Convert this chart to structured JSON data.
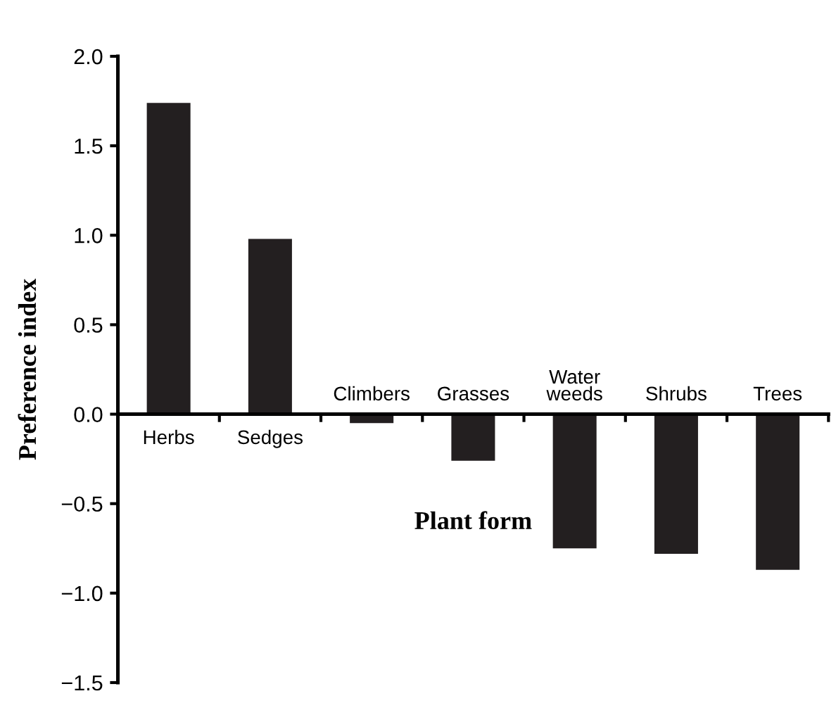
{
  "chart_data": {
    "type": "bar",
    "xlabel": "Plant form",
    "ylabel": "Preference index",
    "categories": [
      "Herbs",
      "Sedges",
      "Climbers",
      "Grasses",
      "Water\nweeds",
      "Shrubs",
      "Trees"
    ],
    "values": [
      1.74,
      0.98,
      -0.05,
      -0.26,
      -0.75,
      -0.78,
      -0.87
    ],
    "color": "#231f20",
    "ylim": [
      -1.5,
      2.0
    ],
    "yticks": [
      {
        "value": -1.5,
        "label": "−1.5"
      },
      {
        "value": -1.0,
        "label": "−1.0"
      },
      {
        "value": -0.5,
        "label": "−0.5"
      },
      {
        "value": 0.0,
        "label": "0.0"
      },
      0.5,
      {
        "value": 1.0,
        "label": "1.0"
      },
      1.5,
      {
        "value": 2.0,
        "label": "2.0"
      }
    ],
    "grid": false,
    "legend": false
  }
}
